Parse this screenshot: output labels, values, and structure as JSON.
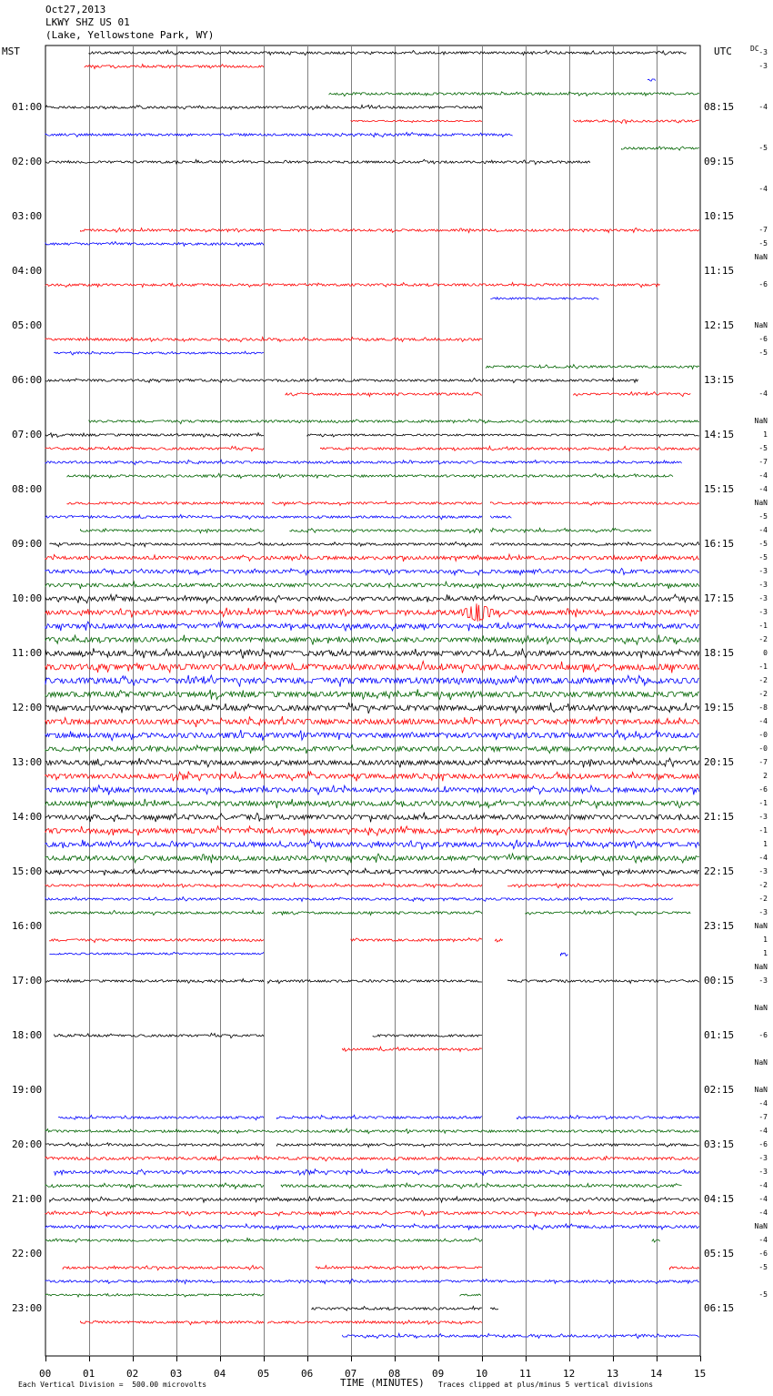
{
  "header": {
    "date": "Oct27,2013",
    "station": "LKWY SHZ US 01",
    "location": "(Lake, Yellowstone Park, WY)"
  },
  "left_axis_title": "MST",
  "right_axis_title": "UTC",
  "dc_header": "DC",
  "footer": {
    "left": "Each Vertical Division =  500.00 microvolts",
    "xlabel": "TIME (MINUTES)",
    "right": "Traces clipped at plus/minus 5 vertical divisions"
  },
  "colors": {
    "black": "#000000",
    "red": "#ff0000",
    "blue": "#0000ff",
    "green": "#006400",
    "grid": "#808080"
  },
  "chart_data": {
    "type": "line",
    "xlabel": "TIME (MINUTES)",
    "xlim": [
      0,
      15
    ],
    "x_ticks": [
      "00",
      "01",
      "02",
      "03",
      "04",
      "05",
      "06",
      "07",
      "08",
      "09",
      "10",
      "11",
      "12",
      "13",
      "14",
      "15"
    ],
    "row_color_cycle": [
      "black",
      "red",
      "blue",
      "green"
    ],
    "hour_labels_left": [
      "01:00",
      "02:00",
      "03:00",
      "04:00",
      "05:00",
      "06:00",
      "07:00",
      "08:00",
      "09:00",
      "10:00",
      "11:00",
      "12:00",
      "13:00",
      "14:00",
      "15:00",
      "16:00",
      "17:00",
      "18:00",
      "19:00",
      "20:00",
      "21:00",
      "22:00",
      "23:00"
    ],
    "hour_labels_right": [
      "08:15",
      "09:15",
      "10:15",
      "11:15",
      "12:15",
      "13:15",
      "14:15",
      "15:15",
      "16:15",
      "17:15",
      "18:15",
      "19:15",
      "20:15",
      "21:15",
      "22:15",
      "23:15",
      "00:15",
      "01:15",
      "02:15",
      "03:15",
      "04:15",
      "05:15",
      "06:15"
    ],
    "dc_offsets": [
      "-3",
      "-3",
      "",
      "",
      "-4",
      "",
      "",
      "-5",
      "",
      "",
      "-4",
      "",
      "",
      "-7",
      "-5",
      "NaN",
      "",
      "-6",
      "",
      "",
      "NaN",
      "-6",
      "-5",
      "",
      "",
      "-4",
      "",
      "NaN",
      "1",
      "-5",
      "-7",
      "-4",
      "-4",
      "NaN",
      "-5",
      "-4",
      "-5",
      "-5",
      "-3",
      "-3",
      "-3",
      "-3",
      "-1",
      "-2",
      "0",
      "-1",
      "-2",
      "-2",
      "-8",
      "-4",
      "-0",
      "-0",
      "-7",
      "2",
      "-6",
      "-1",
      "-3",
      "-1",
      "1",
      "-4",
      "-3",
      "-2",
      "-2",
      "-3",
      "NaN",
      "1",
      "1",
      "NaN",
      "-3",
      "",
      "NaN",
      "",
      "-6",
      "",
      "NaN",
      "",
      "NaN",
      "-4",
      "-7",
      "-4",
      "-6",
      "-3",
      "-3",
      "-4",
      "-4",
      "-4",
      "NaN",
      "-4",
      "-6",
      "-5",
      "",
      "-5",
      "",
      ""
    ],
    "segments": [
      [
        [
          1.0,
          14.7,
          1
        ]
      ],
      [
        [
          0.9,
          5.0,
          1
        ]
      ],
      [
        [
          13.8,
          14.0,
          1
        ]
      ],
      [
        [
          6.5,
          15.0,
          1
        ]
      ],
      [
        [
          0,
          10.0,
          1
        ]
      ],
      [
        [
          7.0,
          10.0,
          0.6
        ],
        [
          12.1,
          15.0,
          1
        ]
      ],
      [
        [
          0,
          10.7,
          1
        ]
      ],
      [
        [
          13.2,
          15.0,
          1
        ]
      ],
      [
        [
          0,
          12.5,
          1
        ]
      ],
      [],
      [],
      [],
      [],
      [
        [
          0.8,
          15.0,
          1
        ]
      ],
      [
        [
          0,
          5.0,
          1
        ]
      ],
      [],
      [],
      [
        [
          0,
          14.1,
          1
        ]
      ],
      [
        [
          10.2,
          12.7,
          0.8
        ]
      ],
      [],
      [],
      [
        [
          0,
          10.0,
          1
        ]
      ],
      [
        [
          0.2,
          5.0,
          0.8
        ]
      ],
      [
        [
          10.1,
          15.0,
          1
        ]
      ],
      [
        [
          0,
          13.6,
          1
        ]
      ],
      [
        [
          5.5,
          10.0,
          1
        ],
        [
          12.1,
          14.8,
          1
        ]
      ],
      [],
      [
        [
          1.0,
          15.0,
          1
        ]
      ],
      [
        [
          0,
          5.0,
          1
        ],
        [
          6.0,
          15.0,
          0.8
        ]
      ],
      [
        [
          0,
          5.0,
          1
        ],
        [
          6.3,
          15.0,
          1
        ]
      ],
      [
        [
          0,
          14.6,
          1
        ]
      ],
      [
        [
          0.5,
          14.4,
          1
        ]
      ],
      [],
      [
        [
          0.5,
          5.0,
          1
        ],
        [
          5.2,
          10.0,
          1
        ],
        [
          10.2,
          15.0,
          1
        ]
      ],
      [
        [
          0,
          10.0,
          1
        ],
        [
          10.2,
          10.7,
          1
        ]
      ],
      [
        [
          0.8,
          5.0,
          1
        ],
        [
          5.6,
          10.0,
          1
        ],
        [
          10.2,
          13.9,
          1
        ]
      ],
      [
        [
          0.1,
          10.0,
          1
        ],
        [
          10.2,
          15.0,
          1
        ]
      ],
      [
        [
          0,
          15.0,
          1.5
        ]
      ],
      [
        [
          0,
          15.0,
          1.5
        ]
      ],
      [
        [
          0,
          15.0,
          1.5
        ]
      ],
      [
        [
          0,
          15.0,
          1.8
        ]
      ],
      [
        [
          0,
          15.0,
          2
        ]
      ],
      [
        [
          0,
          15.0,
          2
        ]
      ],
      [
        [
          0,
          15.0,
          2
        ]
      ],
      [
        [
          0,
          15.0,
          2.2
        ]
      ],
      [
        [
          0,
          15.0,
          2.5
        ]
      ],
      [
        [
          0,
          15.0,
          2.5
        ]
      ],
      [
        [
          0,
          15.0,
          2.3
        ]
      ],
      [
        [
          0,
          15.0,
          2.2
        ]
      ],
      [
        [
          0,
          15.0,
          2.2
        ]
      ],
      [
        [
          0,
          15.0,
          2.2
        ]
      ],
      [
        [
          0,
          15.0,
          2
        ]
      ],
      [
        [
          0,
          15.0,
          2
        ]
      ],
      [
        [
          0,
          15.0,
          2
        ]
      ],
      [
        [
          0,
          15.0,
          2
        ]
      ],
      [
        [
          0,
          15.0,
          2
        ]
      ],
      [
        [
          0,
          15.0,
          2
        ]
      ],
      [
        [
          0,
          15.0,
          2
        ]
      ],
      [
        [
          0,
          15.0,
          2
        ]
      ],
      [
        [
          0,
          15.0,
          2
        ]
      ],
      [
        [
          0,
          15.0,
          1.5
        ]
      ],
      [
        [
          0,
          10.0,
          1
        ],
        [
          10.6,
          15.0,
          1
        ]
      ],
      [
        [
          0,
          14.4,
          1
        ]
      ],
      [
        [
          0.1,
          5.0,
          1
        ],
        [
          5.2,
          10.0,
          1
        ],
        [
          11.0,
          14.8,
          1
        ]
      ],
      [],
      [
        [
          0.1,
          5.0,
          1
        ],
        [
          7.0,
          10.0,
          1
        ],
        [
          10.3,
          10.5,
          1
        ]
      ],
      [
        [
          0.1,
          5.0,
          0.8
        ],
        [
          11.8,
          12.0,
          1
        ]
      ],
      [],
      [
        [
          0,
          5.0,
          1
        ],
        [
          5.1,
          10.0,
          1
        ],
        [
          10.6,
          15.0,
          1
        ]
      ],
      [],
      [],
      [],
      [
        [
          0.2,
          5.0,
          1
        ],
        [
          7.5,
          10.0,
          1
        ]
      ],
      [
        [
          6.8,
          10.0,
          1
        ]
      ],
      [],
      [],
      [],
      [],
      [
        [
          0.3,
          5.0,
          1
        ],
        [
          5.3,
          10.0,
          1
        ],
        [
          10.8,
          15.0,
          1
        ]
      ],
      [
        [
          0,
          15.0,
          1
        ]
      ],
      [
        [
          0,
          5.0,
          1
        ],
        [
          5.3,
          15.0,
          1
        ]
      ],
      [
        [
          0,
          15.0,
          1.2
        ]
      ],
      [
        [
          0.2,
          15.0,
          1.2
        ]
      ],
      [
        [
          0,
          5.0,
          1.2
        ],
        [
          5.4,
          14.6,
          1.2
        ]
      ],
      [
        [
          0.1,
          15.0,
          1.2
        ]
      ],
      [
        [
          0,
          15.0,
          1.2
        ]
      ],
      [
        [
          0,
          15.0,
          1.2
        ]
      ],
      [
        [
          0,
          10.0,
          1
        ],
        [
          13.9,
          14.1,
          1
        ]
      ],
      [],
      [
        [
          0.4,
          5.0,
          1
        ],
        [
          6.2,
          10.0,
          1
        ],
        [
          14.3,
          15.0,
          1
        ]
      ],
      [
        [
          0,
          15.0,
          1
        ]
      ],
      [
        [
          0,
          5.0,
          0.8
        ],
        [
          9.5,
          10.0,
          0.8
        ]
      ],
      [
        [
          6.1,
          10.0,
          1
        ],
        [
          10.2,
          10.4,
          1
        ]
      ],
      [
        [
          0.8,
          5.0,
          1
        ],
        [
          5.1,
          10.0,
          1
        ]
      ],
      [
        [
          6.8,
          15.0,
          1
        ]
      ]
    ],
    "events": [
      {
        "row": 41,
        "x": 9.9,
        "amp": 4
      }
    ]
  }
}
